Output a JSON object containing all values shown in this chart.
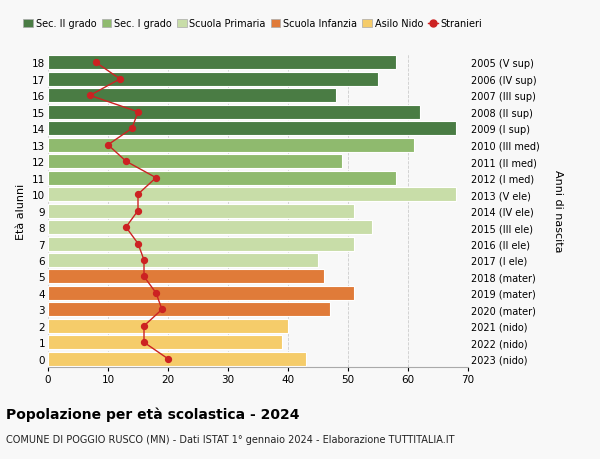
{
  "ages": [
    0,
    1,
    2,
    3,
    4,
    5,
    6,
    7,
    8,
    9,
    10,
    11,
    12,
    13,
    14,
    15,
    16,
    17,
    18
  ],
  "labels_right": [
    "2023 (nido)",
    "2022 (nido)",
    "2021 (nido)",
    "2020 (mater)",
    "2019 (mater)",
    "2018 (mater)",
    "2017 (I ele)",
    "2016 (II ele)",
    "2015 (III ele)",
    "2014 (IV ele)",
    "2013 (V ele)",
    "2012 (I med)",
    "2011 (II med)",
    "2010 (III med)",
    "2009 (I sup)",
    "2008 (II sup)",
    "2007 (III sup)",
    "2006 (IV sup)",
    "2005 (V sup)"
  ],
  "bar_values": [
    43,
    39,
    40,
    47,
    51,
    46,
    45,
    51,
    54,
    51,
    68,
    58,
    49,
    61,
    68,
    62,
    48,
    55,
    58
  ],
  "bar_colors": [
    "#f5cc6a",
    "#f5cc6a",
    "#f5cc6a",
    "#e07b39",
    "#e07b39",
    "#e07b39",
    "#c8dda8",
    "#c8dda8",
    "#c8dda8",
    "#c8dda8",
    "#c8dda8",
    "#8fba6e",
    "#8fba6e",
    "#8fba6e",
    "#4a7c44",
    "#4a7c44",
    "#4a7c44",
    "#4a7c44",
    "#4a7c44"
  ],
  "stranieri_values": [
    20,
    16,
    16,
    19,
    18,
    16,
    16,
    15,
    13,
    15,
    15,
    18,
    13,
    10,
    14,
    15,
    7,
    12,
    8
  ],
  "legend_labels": [
    "Sec. II grado",
    "Sec. I grado",
    "Scuola Primaria",
    "Scuola Infanzia",
    "Asilo Nido",
    "Stranieri"
  ],
  "legend_colors": [
    "#4a7c44",
    "#8fba6e",
    "#c8dda8",
    "#e07b39",
    "#f5cc6a",
    "#cc2222"
  ],
  "ylabel_left": "Età alunni",
  "ylabel_right": "Anni di nascita",
  "title": "Popolazione per età scolastica - 2024",
  "subtitle": "COMUNE DI POGGIO RUSCO (MN) - Dati ISTAT 1° gennaio 2024 - Elaborazione TUTTITALIA.IT",
  "xlim": [
    0,
    70
  ],
  "xticks": [
    0,
    10,
    20,
    30,
    40,
    50,
    60,
    70
  ],
  "background_color": "#f8f8f8",
  "bar_edgecolor": "#ffffff",
  "grid_color": "#cccccc"
}
